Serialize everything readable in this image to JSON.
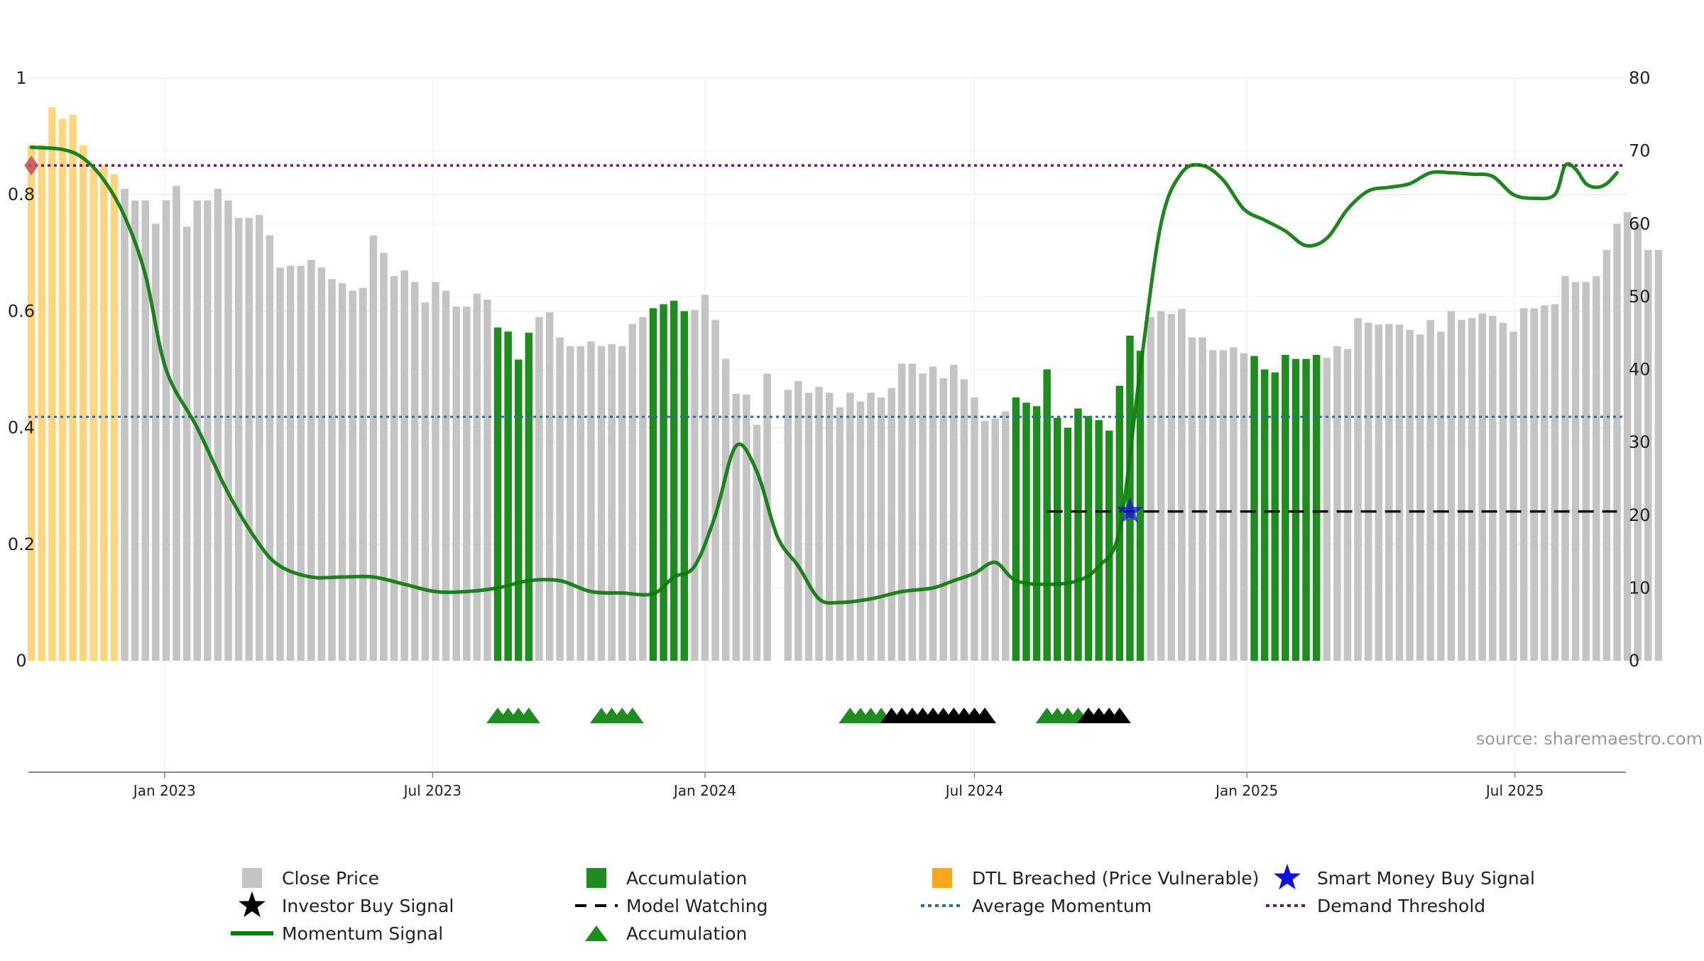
{
  "chart_data": {
    "type": "bar",
    "source_text": "source: sharemaestro.com",
    "left_axis": {
      "range": [
        0,
        1
      ],
      "ticks": [
        "0",
        "0.2",
        "0.4",
        "0.6",
        "0.8",
        "1"
      ]
    },
    "right_axis": {
      "range": [
        0,
        80
      ],
      "ticks": [
        "0",
        "10",
        "20",
        "30",
        "40",
        "50",
        "60",
        "70",
        "80"
      ]
    },
    "x_range": [
      "2022-10-01",
      "2025-09-14"
    ],
    "x_ticks": [
      {
        "date": "2023-01-01",
        "label": "Jan 2023"
      },
      {
        "date": "2023-07-01",
        "label": "Jul 2023"
      },
      {
        "date": "2024-01-01",
        "label": "Jan 2024"
      },
      {
        "date": "2024-07-01",
        "label": "Jul 2024"
      },
      {
        "date": "2025-01-01",
        "label": "Jan 2025"
      },
      {
        "date": "2025-07-01",
        "label": "Jul 2025"
      }
    ],
    "bars": {
      "start_date": "2022-10-03",
      "interval_days": 7,
      "values": [
        0.885,
        0.885,
        0.95,
        0.93,
        0.937,
        0.885,
        0.845,
        0.85,
        0.835,
        0.81,
        0.79,
        0.79,
        0.75,
        0.79,
        0.815,
        0.745,
        0.79,
        0.79,
        0.81,
        0.79,
        0.76,
        0.76,
        0.765,
        0.73,
        0.675,
        0.678,
        0.678,
        0.688,
        0.675,
        0.655,
        0.648,
        0.635,
        0.64,
        0.73,
        0.7,
        0.66,
        0.67,
        0.65,
        0.615,
        0.65,
        0.635,
        0.608,
        0.608,
        0.63,
        0.62,
        0.572,
        0.565,
        0.517,
        0.563,
        0.59,
        0.598,
        0.555,
        0.54,
        0.54,
        0.548,
        0.54,
        0.543,
        0.54,
        0.578,
        0.59,
        0.605,
        0.612,
        0.618,
        0.6,
        0.602,
        0.628,
        0.585,
        0.518,
        0.458,
        0.457,
        0.405,
        0.493,
        0.0,
        0.465,
        0.48,
        0.46,
        0.47,
        0.46,
        0.435,
        0.46,
        0.445,
        0.46,
        0.452,
        0.468,
        0.51,
        0.51,
        0.493,
        0.505,
        0.485,
        0.508,
        0.483,
        0.452,
        0.412,
        0.416,
        0.428,
        0.452,
        0.443,
        0.437,
        0.5,
        0.417,
        0.4,
        0.433,
        0.42,
        0.413,
        0.395,
        0.472,
        0.558,
        0.532,
        0.59,
        0.6,
        0.595,
        0.604,
        0.555,
        0.555,
        0.533,
        0.533,
        0.538,
        0.528,
        0.523,
        0.5,
        0.495,
        0.525,
        0.518,
        0.518,
        0.525,
        0.52,
        0.54,
        0.535,
        0.588,
        0.58,
        0.577,
        0.578,
        0.577,
        0.568,
        0.56,
        0.585,
        0.565,
        0.6,
        0.585,
        0.588,
        0.596,
        0.592,
        0.58,
        0.565,
        0.605,
        0.605,
        0.61,
        0.612,
        0.66,
        0.65,
        0.65,
        0.66,
        0.705,
        0.75,
        0.77,
        0.75,
        0.705,
        0.705
      ],
      "states": "DDDDDDDDDCCCCCCCCCCCCCCCCCCCCCCCCCCCCCCCCCCCCAAAACCCCCCCCCCCAAAACCCCCCCCCCCCCCCCCCCCCCCCCCCCCCCAAAAAAAAAAAAACCCCCCCCCCAAAAAAACCCCCCCCCCCCCCCCCCCCCCCCCCCCCCCCCCCCCCCCCCCCCCCCCCCCCC"
    },
    "momentum": {
      "x": [
        "2022-10-03",
        "2022-10-24",
        "2022-11-07",
        "2022-11-21",
        "2022-12-05",
        "2022-12-19",
        "2023-01-02",
        "2023-01-23",
        "2023-02-13",
        "2023-03-06",
        "2023-03-20",
        "2023-04-10",
        "2023-05-01",
        "2023-05-22",
        "2023-06-12",
        "2023-07-03",
        "2023-07-24",
        "2023-08-14",
        "2023-09-04",
        "2023-09-25",
        "2023-10-16",
        "2023-11-06",
        "2023-11-27",
        "2023-12-11",
        "2023-12-25",
        "2024-01-08",
        "2024-01-22",
        "2024-02-05",
        "2024-02-19",
        "2024-03-04",
        "2024-03-18",
        "2024-04-01",
        "2024-04-22",
        "2024-05-13",
        "2024-06-03",
        "2024-06-17",
        "2024-07-01",
        "2024-07-15",
        "2024-07-29",
        "2024-08-19",
        "2024-09-09",
        "2024-09-23",
        "2024-10-07",
        "2024-10-21",
        "2024-11-04",
        "2024-11-18",
        "2024-12-02",
        "2024-12-16",
        "2024-12-30",
        "2025-01-13",
        "2025-01-27",
        "2025-02-10",
        "2025-02-24",
        "2025-03-10",
        "2025-03-24",
        "2025-04-07",
        "2025-04-21",
        "2025-05-05",
        "2025-05-19",
        "2025-06-02",
        "2025-06-16",
        "2025-06-30",
        "2025-07-14",
        "2025-07-28",
        "2025-08-04",
        "2025-08-11",
        "2025-08-18",
        "2025-08-25",
        "2025-09-01",
        "2025-09-08"
      ],
      "y": [
        70.5,
        70.2,
        69.0,
        66.0,
        61.0,
        53.0,
        40.0,
        32.0,
        23.0,
        16.0,
        13.0,
        11.5,
        11.5,
        11.5,
        10.5,
        9.5,
        9.5,
        10.0,
        11.0,
        11.0,
        9.5,
        9.3,
        9.2,
        11.5,
        13.0,
        20.0,
        29.5,
        26.0,
        17.0,
        13.0,
        8.5,
        8.0,
        8.5,
        9.5,
        10.0,
        11.0,
        12.0,
        13.5,
        11.0,
        10.5,
        11.0,
        13.0,
        18.0,
        40.0,
        60.0,
        67.0,
        68.0,
        66.0,
        62.0,
        60.5,
        59.0,
        57.0,
        58.0,
        62.0,
        64.5,
        65.0,
        65.5,
        67.0,
        67.0,
        66.8,
        66.5,
        64.0,
        63.5,
        64.0,
        68.0,
        67.5,
        65.5,
        65.0,
        65.5,
        67.0
      ]
    },
    "demand_threshold": 68,
    "average_momentum": 33.5,
    "model_watching": {
      "start": "2024-08-19",
      "end": "2025-09-08",
      "value": 20.5
    },
    "smart_money_buy_signal": {
      "date": "2024-10-14",
      "value": 20.5
    },
    "breach_marker": {
      "date": "2022-10-03",
      "value": 68
    },
    "triangles": [
      {
        "date": "2023-08-14",
        "color": "green"
      },
      {
        "date": "2023-08-21",
        "color": "green"
      },
      {
        "date": "2023-08-28",
        "color": "green"
      },
      {
        "date": "2023-09-04",
        "color": "green"
      },
      {
        "date": "2023-10-23",
        "color": "green"
      },
      {
        "date": "2023-10-30",
        "color": "green"
      },
      {
        "date": "2023-11-06",
        "color": "green"
      },
      {
        "date": "2023-11-13",
        "color": "green"
      },
      {
        "date": "2024-04-08",
        "color": "green"
      },
      {
        "date": "2024-04-15",
        "color": "green"
      },
      {
        "date": "2024-04-22",
        "color": "green"
      },
      {
        "date": "2024-04-29",
        "color": "green"
      },
      {
        "date": "2024-05-06",
        "color": "black"
      },
      {
        "date": "2024-05-13",
        "color": "black"
      },
      {
        "date": "2024-05-20",
        "color": "black"
      },
      {
        "date": "2024-05-27",
        "color": "black"
      },
      {
        "date": "2024-06-03",
        "color": "black"
      },
      {
        "date": "2024-06-10",
        "color": "black"
      },
      {
        "date": "2024-06-17",
        "color": "black"
      },
      {
        "date": "2024-06-24",
        "color": "black"
      },
      {
        "date": "2024-07-01",
        "color": "black"
      },
      {
        "date": "2024-07-08",
        "color": "black"
      },
      {
        "date": "2024-08-19",
        "color": "green"
      },
      {
        "date": "2024-08-26",
        "color": "green"
      },
      {
        "date": "2024-09-02",
        "color": "green"
      },
      {
        "date": "2024-09-09",
        "color": "green"
      },
      {
        "date": "2024-09-16",
        "color": "black"
      },
      {
        "date": "2024-09-23",
        "color": "black"
      },
      {
        "date": "2024-09-30",
        "color": "black"
      },
      {
        "date": "2024-10-07",
        "color": "black"
      }
    ],
    "colors": {
      "close_price": "#c4c4c4",
      "accumulation": "#1e8c1e",
      "dtl_breached": "#ffd580",
      "momentum": "#0d7a0d",
      "smart_money": "#1111dd",
      "demand_threshold": "#6b1a6b",
      "average_momentum": "#2a6fa0",
      "model_watching": "#111111",
      "breach_marker": "#c44d5a"
    },
    "legend": {
      "placement": "bottom",
      "items": [
        {
          "key": "close",
          "label": "Close Price"
        },
        {
          "key": "accum_bar",
          "label": "Accumulation"
        },
        {
          "key": "dtl",
          "label": "DTL Breached (Price Vulnerable)"
        },
        {
          "key": "smart",
          "label": "Smart Money Buy Signal"
        },
        {
          "key": "investor",
          "label": "Investor Buy Signal"
        },
        {
          "key": "watching",
          "label": "Model Watching"
        },
        {
          "key": "avg",
          "label": "Average Momentum"
        },
        {
          "key": "demand",
          "label": "Demand Threshold"
        },
        {
          "key": "momentum",
          "label": "Momentum Signal"
        },
        {
          "key": "accum_tri",
          "label": "Accumulation"
        }
      ]
    }
  }
}
